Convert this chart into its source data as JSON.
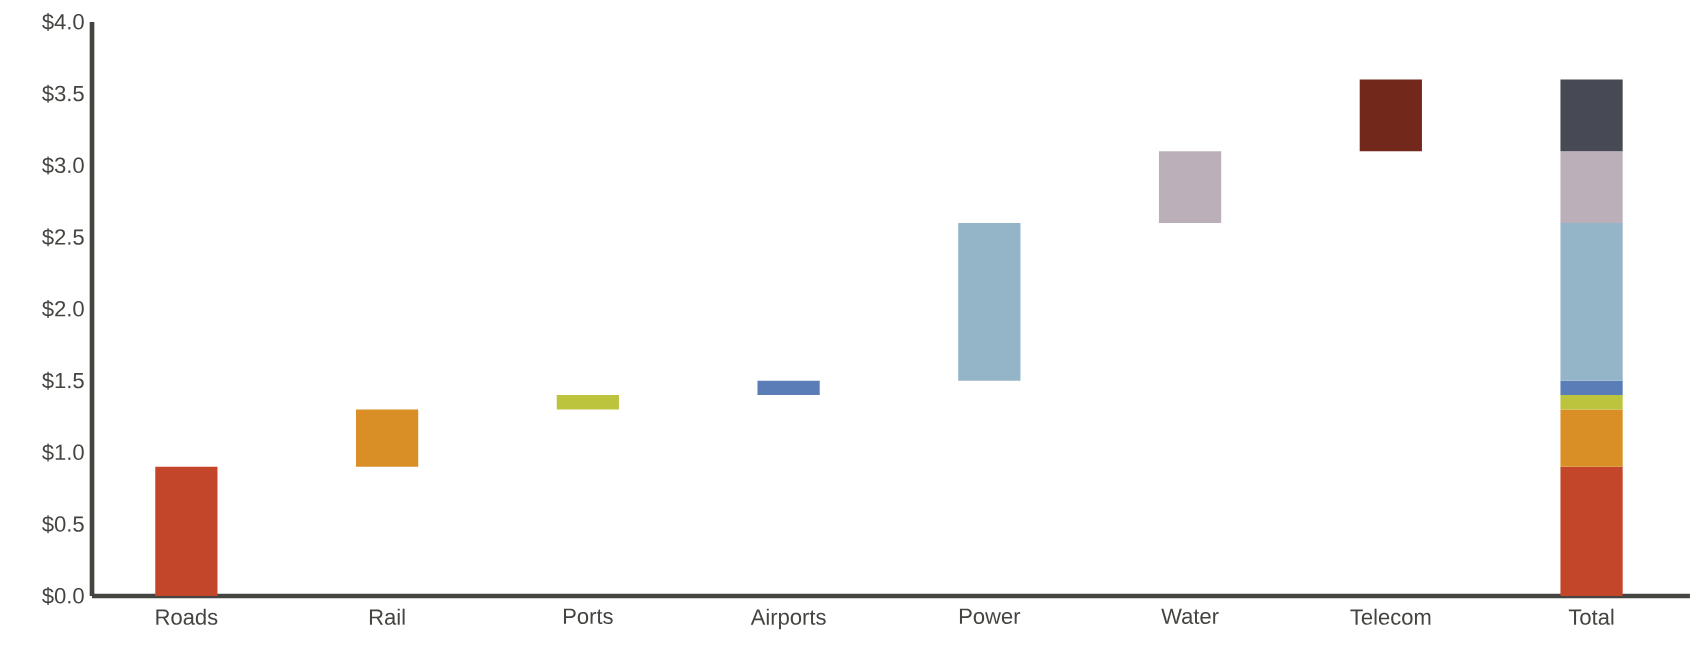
{
  "chart_data": {
    "type": "bar",
    "categories": [
      "Roads",
      "Rail",
      "Ports",
      "Airports",
      "Power",
      "Water",
      "Telecom",
      "Total"
    ],
    "series": [
      {
        "color": "#c4462a",
        "values": [
          0.9,
          null,
          null,
          null,
          null,
          null,
          null,
          0.9
        ],
        "base": [
          0,
          null,
          null,
          null,
          null,
          null,
          null,
          0
        ]
      },
      {
        "color": "#d98f25",
        "values": [
          null,
          0.4,
          null,
          null,
          null,
          null,
          null,
          0.4
        ],
        "base": [
          null,
          0.9,
          null,
          null,
          null,
          null,
          null,
          0.9
        ]
      },
      {
        "color": "#bcc43d",
        "values": [
          null,
          null,
          0.1,
          null,
          null,
          null,
          null,
          0.1
        ],
        "base": [
          null,
          null,
          1.3,
          null,
          null,
          null,
          null,
          1.3
        ]
      },
      {
        "color": "#5a7db8",
        "values": [
          null,
          null,
          null,
          0.1,
          null,
          null,
          null,
          0.1
        ],
        "base": [
          null,
          null,
          null,
          1.4,
          null,
          null,
          null,
          1.4
        ]
      },
      {
        "color": "#94b5c8",
        "values": [
          null,
          null,
          null,
          null,
          1.1,
          null,
          null,
          1.1
        ],
        "base": [
          null,
          null,
          null,
          null,
          1.5,
          null,
          null,
          1.5
        ]
      },
      {
        "color": "#bbafba",
        "values": [
          null,
          null,
          null,
          null,
          null,
          0.5,
          null,
          0.5
        ],
        "base": [
          null,
          null,
          null,
          null,
          null,
          2.6,
          null,
          2.6
        ]
      },
      {
        "colors": [
          null,
          null,
          null,
          null,
          null,
          null,
          "#72281a",
          "#474a54"
        ],
        "values": [
          null,
          null,
          null,
          null,
          null,
          null,
          0.5,
          0.5
        ],
        "base": [
          null,
          null,
          null,
          null,
          null,
          null,
          3.1,
          3.1
        ]
      }
    ],
    "ylim": [
      0,
      4
    ],
    "yticks": [
      {
        "value": 0,
        "label": "$0.0"
      },
      {
        "value": 0.5,
        "label": "$0.5"
      },
      {
        "value": 1,
        "label": "$1.0"
      },
      {
        "value": 1.5,
        "label": "$1.5"
      },
      {
        "value": 2,
        "label": "$2.0"
      },
      {
        "value": 2.5,
        "label": "$2.5"
      },
      {
        "value": 3,
        "label": "$3.0"
      },
      {
        "value": 3.5,
        "label": "$3.5"
      },
      {
        "value": 4,
        "label": "$4.0"
      }
    ]
  }
}
